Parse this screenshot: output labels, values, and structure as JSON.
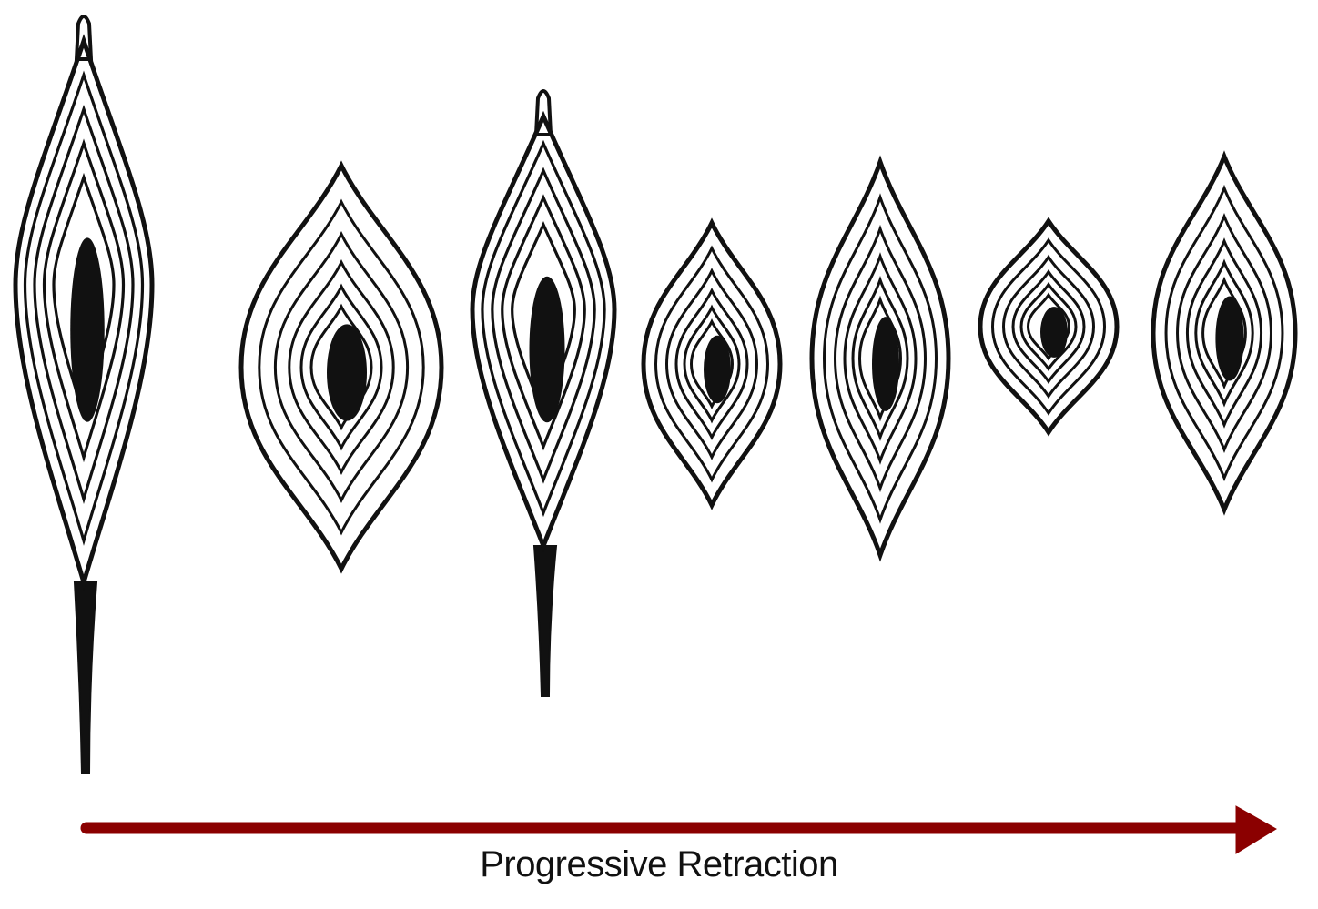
{
  "diagram": {
    "caption": "Progressive Retraction",
    "arrow_color": "#8b0000",
    "ink_color": "#111111",
    "stages": [
      {
        "shape": "elongated-cell",
        "order": 1
      },
      {
        "shape": "rhombic-cell",
        "order": 2
      },
      {
        "shape": "elongated-cell",
        "order": 3
      },
      {
        "shape": "rhombic-cell",
        "order": 4
      },
      {
        "shape": "rhombic-cell",
        "order": 5
      },
      {
        "shape": "rhombic-cell",
        "order": 6
      },
      {
        "shape": "rhombic-cell",
        "order": 7
      }
    ]
  }
}
